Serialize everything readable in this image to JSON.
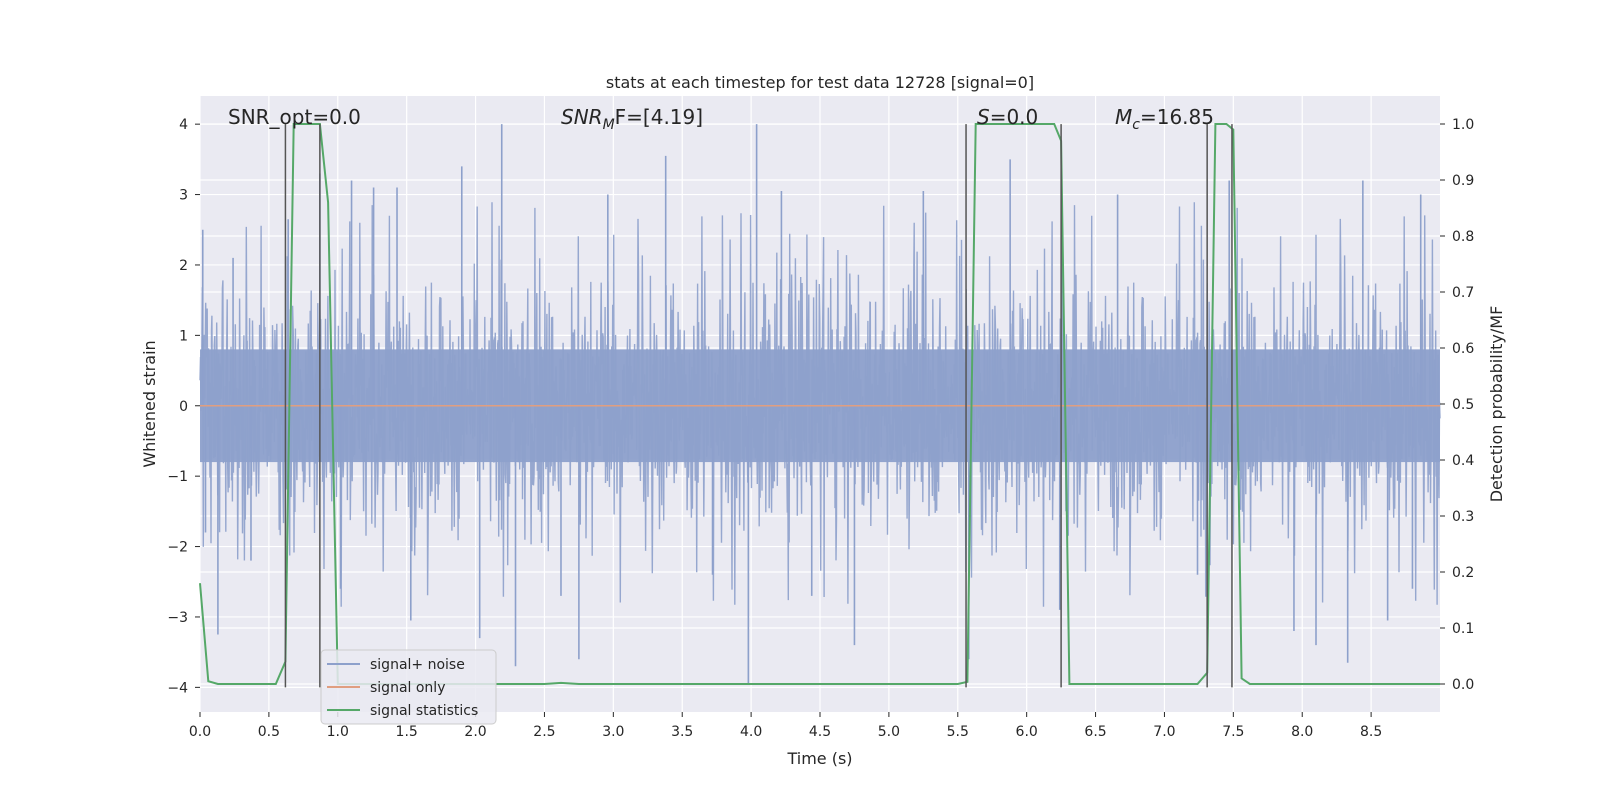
{
  "chart_data": {
    "type": "line",
    "title": "stats at each timestep for test data 12728 [signal=0]",
    "xlabel": "Time (s)",
    "ylabel": "Whitened strain",
    "ylabel_right": "Detection probability/MF",
    "xlim": [
      0,
      9.0
    ],
    "ylim": [
      -4.35,
      4.4
    ],
    "ylim_right": [
      -0.05,
      1.05
    ],
    "x_ticks": [
      0.0,
      0.5,
      1.0,
      1.5,
      2.0,
      2.5,
      3.0,
      3.5,
      4.0,
      4.5,
      5.0,
      5.5,
      6.0,
      6.5,
      7.0,
      7.5,
      8.0,
      8.5
    ],
    "x_tick_labels": [
      "0.0",
      "0.5",
      "1.0",
      "1.5",
      "2.0",
      "2.5",
      "3.0",
      "3.5",
      "4.0",
      "4.5",
      "5.0",
      "5.5",
      "6.0",
      "6.5",
      "7.0",
      "7.5",
      "8.0",
      "8.5"
    ],
    "y_ticks": [
      -4,
      -3,
      -2,
      -1,
      0,
      1,
      2,
      3,
      4
    ],
    "y_tick_labels": [
      "−4",
      "−3",
      "−2",
      "−1",
      "0",
      "1",
      "2",
      "3",
      "4"
    ],
    "y_ticks_right": [
      0.0,
      0.1,
      0.2,
      0.3,
      0.4,
      0.5,
      0.6,
      0.7,
      0.8,
      0.9,
      1.0
    ],
    "y_tick_labels_right": [
      "0.0",
      "0.1",
      "0.2",
      "0.3",
      "0.4",
      "0.5",
      "0.6",
      "0.7",
      "0.8",
      "0.9",
      "1.0"
    ],
    "grid": true,
    "legend_position": "lower-left",
    "annotations": {
      "snr_opt": "SNR_opt=0.0",
      "snr_mf_base": "SNR",
      "snr_mf_sub": "M",
      "snr_mf_rest": "F=[4.19]",
      "s_label": "S",
      "s_value": "=0.0",
      "mc_label": "M",
      "mc_sub": "c",
      "mc_value": "=16.85"
    },
    "series": [
      {
        "name": "signal+ noise",
        "axis": "left",
        "color": "#8da0cb",
        "description_values": {
          "sample_rate_hz": 2048,
          "core_amplitude": 0.8,
          "max_abs": 4.0
        },
        "peaks": [
          [
            0.02,
            2.5
          ],
          [
            0.04,
            -1.8
          ],
          [
            0.13,
            -3.25
          ],
          [
            0.24,
            2.1
          ],
          [
            0.37,
            -2.2
          ],
          [
            0.64,
            2.65
          ],
          [
            0.87,
            3.3
          ],
          [
            1.02,
            -2.6
          ],
          [
            1.1,
            3.2
          ],
          [
            1.26,
            3.1
          ],
          [
            1.43,
            3.1
          ],
          [
            1.53,
            -3.05
          ],
          [
            1.9,
            3.4
          ],
          [
            2.03,
            -3.3
          ],
          [
            2.19,
            4.0
          ],
          [
            2.29,
            -3.7
          ],
          [
            2.62,
            -2.7
          ],
          [
            2.75,
            -3.6
          ],
          [
            2.96,
            3.0
          ],
          [
            3.38,
            3.55
          ],
          [
            3.72,
            -2.4
          ],
          [
            3.98,
            -3.95
          ],
          [
            4.04,
            4.0
          ],
          [
            4.22,
            3.05
          ],
          [
            4.44,
            -2.7
          ],
          [
            4.75,
            -3.4
          ],
          [
            5.25,
            3.05
          ],
          [
            5.58,
            -3.6
          ],
          [
            5.88,
            3.5
          ],
          [
            6.24,
            -2.9
          ],
          [
            6.66,
            3.0
          ],
          [
            7.24,
            -2.4
          ],
          [
            7.47,
            3.2
          ],
          [
            7.94,
            -3.2
          ],
          [
            8.1,
            -3.4
          ],
          [
            8.33,
            -3.65
          ],
          [
            8.44,
            3.2
          ],
          [
            8.62,
            -3.05
          ],
          [
            8.8,
            -2.6
          ],
          [
            8.86,
            3.0
          ]
        ]
      },
      {
        "name": "signal only",
        "axis": "left",
        "color": "#e09e80",
        "x": [
          0,
          9.0
        ],
        "y": [
          0,
          0
        ]
      },
      {
        "name": "signal statistics",
        "axis": "right",
        "color": "#55a868",
        "x": [
          0.0,
          0.06,
          0.13,
          0.55,
          0.62,
          0.68,
          0.87,
          0.93,
          1.0,
          1.15,
          2.0,
          2.5,
          2.62,
          2.75,
          3.0,
          5.5,
          5.57,
          5.63,
          6.2,
          6.25,
          6.31,
          6.37,
          7.0,
          7.24,
          7.31,
          7.37,
          7.45,
          7.5,
          7.56,
          7.62,
          8.0,
          9.0
        ],
        "y": [
          0.18,
          0.005,
          0.0,
          0.0,
          0.04,
          1.0,
          1.0,
          0.86,
          0.0,
          0.0,
          0.0,
          0.0,
          0.002,
          0.0,
          0.0,
          0.0,
          0.004,
          1.0,
          1.0,
          0.97,
          0.0,
          0.0,
          0.0,
          0.0,
          0.02,
          1.0,
          1.0,
          0.99,
          0.01,
          0.0,
          0.0,
          0.0
        ]
      }
    ],
    "vertical_lines_left_y": [
      {
        "x": 0.62,
        "y": [
          -4.0,
          4.0
        ]
      },
      {
        "x": 0.87,
        "y": [
          -4.0,
          4.0
        ]
      },
      {
        "x": 5.56,
        "y": [
          -4.0,
          4.0
        ]
      },
      {
        "x": 6.25,
        "y": [
          -4.0,
          4.0
        ]
      },
      {
        "x": 7.31,
        "y": [
          -4.0,
          4.0
        ]
      },
      {
        "x": 7.49,
        "y": [
          -4.0,
          4.0
        ]
      }
    ]
  }
}
